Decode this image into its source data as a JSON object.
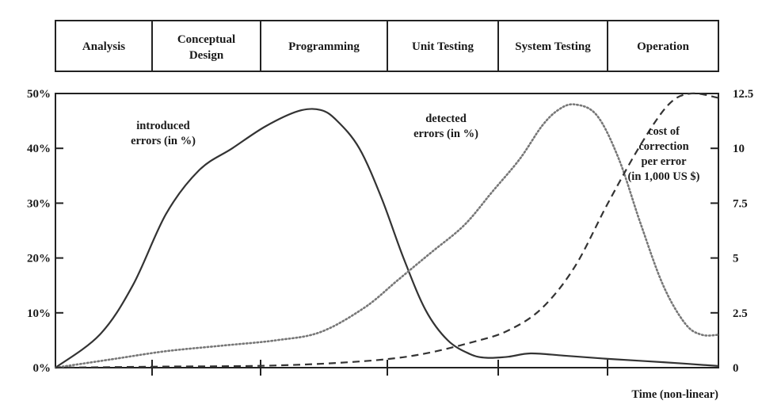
{
  "chart_data": {
    "type": "line",
    "phases": [
      "Analysis",
      "Conceptual Design",
      "Programming",
      "Unit Testing",
      "System Testing",
      "Operation"
    ],
    "xlabel": "Time (non-linear)",
    "y_left": {
      "ticks": [
        "0%",
        "10%",
        "20%",
        "30%",
        "40%",
        "50%"
      ],
      "ylim": [
        0,
        50
      ]
    },
    "y_right": {
      "ticks": [
        "0",
        "2.5",
        "5",
        "7.5",
        "10",
        "12.5"
      ],
      "ylim": [
        0,
        12.5
      ]
    },
    "x_range": [
      0,
      6
    ],
    "series": [
      {
        "label_lines": [
          "introduced",
          "errors  (in %)"
        ],
        "axis": "left",
        "style": "solid",
        "x": [
          0,
          0.4,
          0.7,
          1.0,
          1.3,
          1.6,
          1.9,
          2.2,
          2.4,
          2.55,
          2.75,
          2.95,
          3.15,
          3.35,
          3.55,
          3.75,
          3.9,
          4.1,
          4.3,
          4.6,
          5.0,
          5.5,
          6.0
        ],
        "y": [
          0,
          6,
          15,
          28,
          36,
          40,
          44,
          46.8,
          47,
          45,
          40,
          31,
          20,
          10.5,
          5,
          2.5,
          1.8,
          2,
          2.6,
          2.2,
          1.6,
          1.0,
          0.3
        ]
      },
      {
        "label_lines": [
          "detected",
          "errors  (in %)"
        ],
        "axis": "left",
        "style": "dotted",
        "x": [
          0,
          0.5,
          1.0,
          1.5,
          2.0,
          2.4,
          2.8,
          3.1,
          3.4,
          3.7,
          3.95,
          4.2,
          4.4,
          4.55,
          4.7,
          4.9,
          5.1,
          5.3,
          5.5,
          5.7,
          5.85,
          6.0
        ],
        "y": [
          0,
          1.5,
          3,
          4,
          5,
          6.5,
          11,
          16,
          21,
          26,
          32,
          38,
          44,
          47,
          48,
          46,
          38,
          26,
          15,
          8,
          6,
          6
        ]
      },
      {
        "label_lines": [
          "cost of",
          "correction",
          "per error",
          "(in 1,000 US $)"
        ],
        "axis": "right",
        "style": "dashed",
        "x": [
          0,
          1.0,
          2.0,
          2.8,
          3.3,
          3.8,
          4.1,
          4.4,
          4.7,
          5.0,
          5.3,
          5.55,
          5.75,
          6.0
        ],
        "y": [
          0,
          0.05,
          0.1,
          0.3,
          0.6,
          1.2,
          1.7,
          2.7,
          4.6,
          7.5,
          10.2,
          12.0,
          12.5,
          12.3
        ]
      }
    ],
    "grid": false
  }
}
